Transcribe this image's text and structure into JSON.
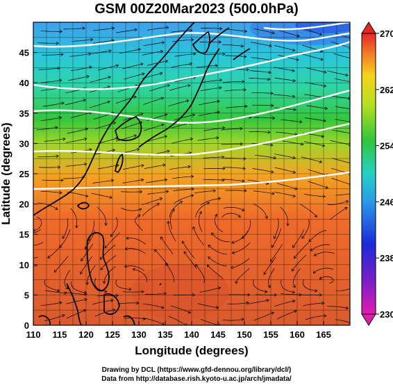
{
  "title": "GSM 00Z20Mar2023 (500.0hPa)",
  "map": {
    "lon_range": [
      110,
      170
    ],
    "lat_range": [
      0,
      50
    ],
    "xlabel": "Longitude (degrees)",
    "ylabel": "Latitude  (degrees)",
    "x_ticks": [
      "110",
      "115",
      "120",
      "125",
      "130",
      "135",
      "140",
      "145",
      "150",
      "155",
      "160",
      "165"
    ],
    "y_ticks": [
      "0",
      "5",
      "10",
      "15",
      "20",
      "25",
      "30",
      "35",
      "40",
      "45"
    ],
    "field": "temperature at 500 hPa (colour shading) with wind streamlines",
    "contour_color": "#ffffff",
    "coastline_color": "#000000"
  },
  "colorbar": {
    "min": 230,
    "max": 270,
    "labels": [
      "270",
      "262",
      "254",
      "246",
      "238",
      "230"
    ]
  },
  "credits": {
    "line1": "Drawing by DCL (https://www.gfd-dennou.org/library/dcl/)",
    "line2": "Data from http://database.rish.kyoto-u.ac.jp/arch/jmadata/"
  }
}
